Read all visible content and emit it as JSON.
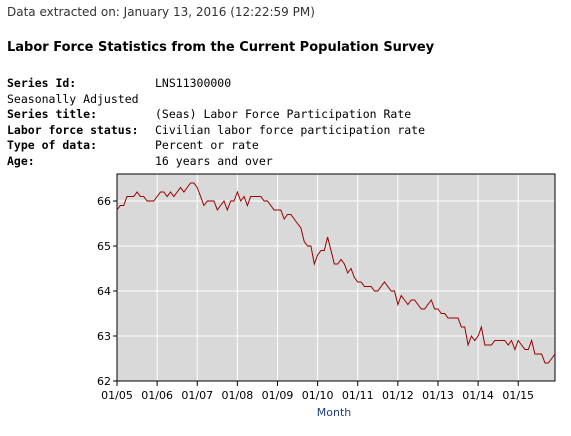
{
  "header": {
    "extracted": "Data extracted on: January 13, 2016 (12:22:59 PM)",
    "title": "Labor Force Statistics from the Current Population Survey"
  },
  "meta": [
    {
      "key": "Series Id:",
      "value": "LNS11300000",
      "bold": true
    },
    {
      "key": "Seasonally Adjusted",
      "value": "",
      "bold": false
    },
    {
      "key": "Series title:",
      "value": "(Seas) Labor Force Participation Rate",
      "bold": true
    },
    {
      "key": "Labor force status:",
      "value": "Civilian labor force participation rate",
      "bold": true
    },
    {
      "key": "Type of data:",
      "value": "Percent or rate",
      "bold": true
    },
    {
      "key": "Age:",
      "value": "16 years and over",
      "bold": true
    }
  ],
  "chart_data": {
    "type": "line",
    "xlabel": "Month",
    "ylabel": "",
    "ylim": [
      62,
      66.6
    ],
    "yticks": [
      62,
      63,
      64,
      65,
      66
    ],
    "xticks": [
      "01/05",
      "01/06",
      "01/07",
      "01/08",
      "01/09",
      "01/10",
      "01/11",
      "01/12",
      "01/13",
      "01/14",
      "01/15"
    ],
    "x_start": "2005-01",
    "x_end": "2015-12",
    "grid": true,
    "colors": {
      "line": "#990000",
      "plot_bg": "#d9d9d9",
      "grid": "#ffffff",
      "xlabel": "#1f3f7f"
    },
    "series": [
      {
        "values": [
          65.8,
          65.9,
          65.9,
          66.1,
          66.1,
          66.1,
          66.2,
          66.1,
          66.1,
          66.0,
          66.0,
          66.0,
          66.1,
          66.2,
          66.2,
          66.1,
          66.2,
          66.1,
          66.2,
          66.3,
          66.2,
          66.3,
          66.4,
          66.4,
          66.3,
          66.1,
          65.9,
          66.0,
          66.0,
          66.0,
          65.8,
          65.9,
          66.0,
          65.8,
          66.0,
          66.0,
          66.2,
          66.0,
          66.1,
          65.9,
          66.1,
          66.1,
          66.1,
          66.1,
          66.0,
          66.0,
          65.9,
          65.8,
          65.8,
          65.8,
          65.6,
          65.7,
          65.7,
          65.6,
          65.5,
          65.4,
          65.1,
          65.0,
          65.0,
          64.6,
          64.8,
          64.9,
          64.9,
          65.2,
          64.9,
          64.6,
          64.6,
          64.7,
          64.6,
          64.4,
          64.5,
          64.3,
          64.2,
          64.2,
          64.1,
          64.1,
          64.1,
          64.0,
          64.0,
          64.1,
          64.2,
          64.1,
          64.0,
          64.0,
          63.7,
          63.9,
          63.8,
          63.7,
          63.8,
          63.8,
          63.7,
          63.6,
          63.6,
          63.7,
          63.8,
          63.6,
          63.6,
          63.5,
          63.5,
          63.4,
          63.4,
          63.4,
          63.4,
          63.2,
          63.2,
          62.8,
          63.0,
          62.9,
          63.0,
          63.2,
          62.8,
          62.8,
          62.8,
          62.9,
          62.9,
          62.9,
          62.9,
          62.8,
          62.9,
          62.7,
          62.9,
          62.8,
          62.7,
          62.7,
          62.9,
          62.6,
          62.6,
          62.6,
          62.4,
          62.4,
          62.5,
          62.6
        ]
      }
    ]
  }
}
